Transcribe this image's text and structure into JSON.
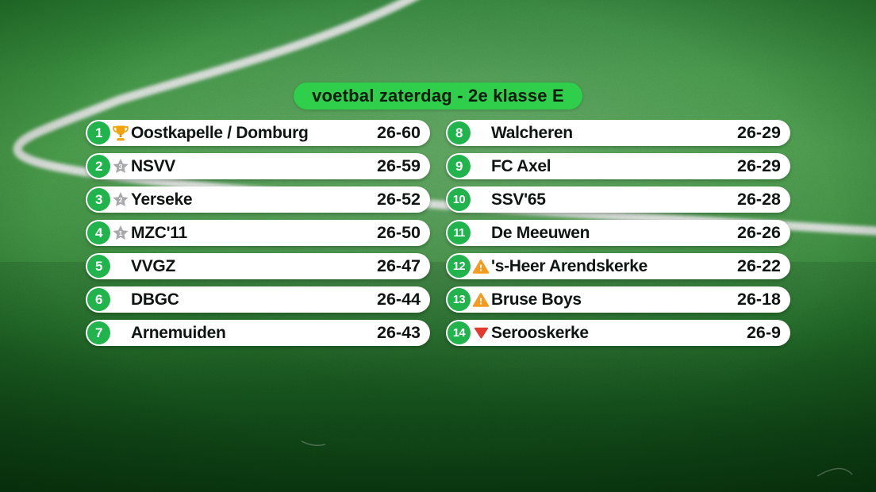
{
  "title": {
    "label": "voetbal zaterdag - 2e klasse E"
  },
  "colors": {
    "accent-green": "#2fcf4b",
    "circle-green": "#21b34c",
    "trophy-gold": "#f0a30a",
    "star-silver": "#a9a9ad",
    "warning-orange": "#f59b1f",
    "relegation-red": "#e23b2e",
    "row-bg": "#ffffff",
    "text-dark": "#0f1512"
  },
  "standings": {
    "columns": [
      {
        "rows": [
          {
            "pos": "1",
            "icon": "trophy",
            "icon_num": "",
            "team": "Oostkapelle / Domburg",
            "record": "26-60"
          },
          {
            "pos": "2",
            "icon": "star",
            "icon_num": "3",
            "team": "NSVV",
            "record": "26-59"
          },
          {
            "pos": "3",
            "icon": "star",
            "icon_num": "2",
            "team": "Yerseke",
            "record": "26-52"
          },
          {
            "pos": "4",
            "icon": "star",
            "icon_num": "1",
            "team": "MZC'11",
            "record": "26-50"
          },
          {
            "pos": "5",
            "icon": "",
            "icon_num": "",
            "team": "VVGZ",
            "record": "26-47"
          },
          {
            "pos": "6",
            "icon": "",
            "icon_num": "",
            "team": "DBGC",
            "record": "26-44"
          },
          {
            "pos": "7",
            "icon": "",
            "icon_num": "",
            "team": "Arnemuiden",
            "record": "26-43"
          }
        ]
      },
      {
        "rows": [
          {
            "pos": "8",
            "icon": "",
            "icon_num": "",
            "team": "Walcheren",
            "record": "26-29"
          },
          {
            "pos": "9",
            "icon": "",
            "icon_num": "",
            "team": "FC Axel",
            "record": "26-29"
          },
          {
            "pos": "10",
            "icon": "",
            "icon_num": "",
            "team": "SSV'65",
            "record": "26-28"
          },
          {
            "pos": "11",
            "icon": "",
            "icon_num": "",
            "team": "De Meeuwen",
            "record": "26-26"
          },
          {
            "pos": "12",
            "icon": "warning",
            "icon_num": "",
            "team": "'s-Heer Arendskerke",
            "record": "26-22"
          },
          {
            "pos": "13",
            "icon": "warning",
            "icon_num": "",
            "team": "Bruse Boys",
            "record": "26-18"
          },
          {
            "pos": "14",
            "icon": "relegation",
            "icon_num": "",
            "team": "Serooskerke",
            "record": "26-9"
          }
        ]
      }
    ]
  },
  "chart_data": {
    "type": "table",
    "title": "voetbal zaterdag - 2e klasse E",
    "columns": [
      "position",
      "marker",
      "team",
      "played-points"
    ],
    "rows": [
      [
        1,
        "trophy",
        "Oostkapelle / Domburg",
        "26-60"
      ],
      [
        2,
        "star-3",
        "NSVV",
        "26-59"
      ],
      [
        3,
        "star-2",
        "Yerseke",
        "26-52"
      ],
      [
        4,
        "star-1",
        "MZC'11",
        "26-50"
      ],
      [
        5,
        "",
        "VVGZ",
        "26-47"
      ],
      [
        6,
        "",
        "DBGC",
        "26-44"
      ],
      [
        7,
        "",
        "Arnemuiden",
        "26-43"
      ],
      [
        8,
        "",
        "Walcheren",
        "26-29"
      ],
      [
        9,
        "",
        "FC Axel",
        "26-29"
      ],
      [
        10,
        "",
        "SSV'65",
        "26-28"
      ],
      [
        11,
        "",
        "De Meeuwen",
        "26-26"
      ],
      [
        12,
        "warning",
        "'s-Heer Arendskerke",
        "26-22"
      ],
      [
        13,
        "warning",
        "Bruse Boys",
        "26-18"
      ],
      [
        14,
        "relegation",
        "Serooskerke",
        "26-9"
      ]
    ]
  }
}
